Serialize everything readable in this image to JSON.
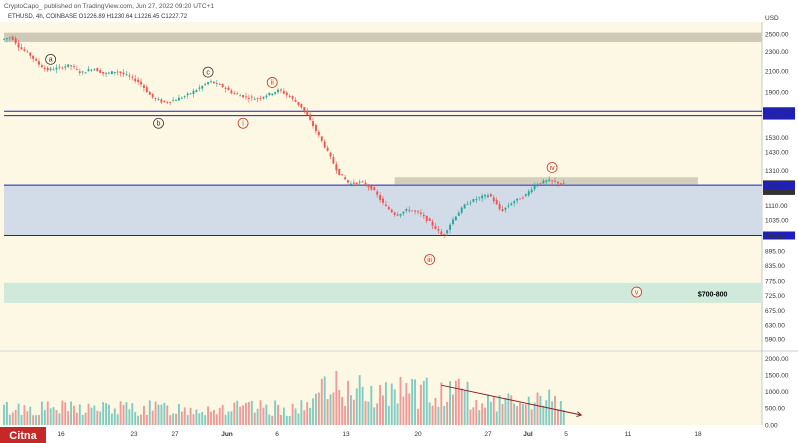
{
  "header": {
    "publisher_line": "CryptoCapo_ published on TradingView.com, Jun 27, 2022 09:20 UTC+1",
    "symbol_line": "ETHUSD, 4h, COINBASE O1226.89 H1230.64 L1226.45 C1227.72"
  },
  "watermark": "Citna",
  "colors": {
    "background": "#fdf8e3",
    "candle_up": "#26a69a",
    "candle_down": "#ef5350",
    "level_line": "#1f1fbf",
    "zone_blue": "#d2dbe8",
    "zone_gray": "#cfcab8",
    "zone_green": "#cfeadb",
    "wave_label": "#c0392b"
  },
  "chart_data": [
    {
      "type": "candlestick",
      "currency_label": "USD",
      "y_axis_ticks": [
        "2500.00",
        "2300.00",
        "2100.00",
        "1900.00",
        "1736.09",
        "1700.87",
        "1530.00",
        "1430.00",
        "1310.00",
        "1227.72",
        "03:39:45",
        "1223.21",
        "1110.00",
        "1035.00",
        "963.47",
        "955.00",
        "895.00",
        "835.00",
        "775.00",
        "725.00",
        "675.00",
        "630.00",
        "590.00"
      ],
      "x_axis_ticks": [
        "16",
        "23",
        "27",
        "Jun",
        "6",
        "13",
        "20",
        "27",
        "Jul",
        "5",
        "11",
        "18"
      ],
      "ylim": [
        560,
        2650
      ],
      "price_path": [
        [
          0,
          2440
        ],
        [
          3,
          2470
        ],
        [
          6,
          2340
        ],
        [
          9,
          2280
        ],
        [
          12,
          2180
        ],
        [
          15,
          2110
        ],
        [
          19,
          2130
        ],
        [
          23,
          2160
        ],
        [
          27,
          2080
        ],
        [
          31,
          2130
        ],
        [
          35,
          2070
        ],
        [
          39,
          2100
        ],
        [
          43,
          2050
        ],
        [
          47,
          1990
        ],
        [
          51,
          1860
        ],
        [
          55,
          1810
        ],
        [
          59,
          1830
        ],
        [
          63,
          1870
        ],
        [
          67,
          1930
        ],
        [
          71,
          2000
        ],
        [
          75,
          1960
        ],
        [
          79,
          1890
        ],
        [
          83,
          1860
        ],
        [
          87,
          1840
        ],
        [
          91,
          1880
        ],
        [
          95,
          1920
        ],
        [
          99,
          1850
        ],
        [
          103,
          1760
        ],
        [
          107,
          1600
        ],
        [
          111,
          1450
        ],
        [
          115,
          1300
        ],
        [
          119,
          1230
        ],
        [
          123,
          1240
        ],
        [
          127,
          1200
        ],
        [
          131,
          1110
        ],
        [
          135,
          1060
        ],
        [
          139,
          1090
        ],
        [
          143,
          1070
        ],
        [
          147,
          1020
        ],
        [
          151,
          960
        ],
        [
          155,
          1050
        ],
        [
          159,
          1120
        ],
        [
          163,
          1150
        ],
        [
          167,
          1170
        ],
        [
          171,
          1080
        ],
        [
          175,
          1130
        ],
        [
          179,
          1160
        ],
        [
          183,
          1230
        ],
        [
          187,
          1250
        ],
        [
          190,
          1240
        ],
        [
          192,
          1228
        ]
      ],
      "levels": [
        {
          "label": "1736.09",
          "price": 1736.09
        },
        {
          "label": "1700.87",
          "price": 1700.87
        },
        {
          "label": "1223.21",
          "price": 1223.21
        },
        {
          "label": "963.47",
          "price": 963.47
        }
      ],
      "zones": [
        {
          "kind": "resistance",
          "from": 2410,
          "to": 2520
        },
        {
          "kind": "range",
          "from": 963.47,
          "to": 1223.21
        },
        {
          "kind": "current",
          "from": 1228,
          "to": 1270
        },
        {
          "kind": "target",
          "from": 700,
          "to": 770
        }
      ],
      "annotations": {
        "wave_labels": [
          {
            "label": "a",
            "x": 16,
            "price": 2220
          },
          {
            "label": "b",
            "x": 53,
            "price": 1640
          },
          {
            "label": "c",
            "x": 70,
            "price": 2090
          },
          {
            "label": "i",
            "x": 82,
            "price": 1640
          },
          {
            "label": "ii",
            "x": 92,
            "price": 1990
          },
          {
            "label": "iii",
            "x": 146,
            "price": 860
          },
          {
            "label": "iv",
            "x": 188,
            "price": 1330
          },
          {
            "label": "v",
            "x": 217,
            "price": 737
          }
        ],
        "target_text": "$700-800"
      },
      "volume": {
        "y_ticks": [
          "2000.00",
          "1500.00",
          "1000.00",
          "500.00",
          "0.00"
        ],
        "ylim": [
          0,
          2200
        ],
        "trend_line": [
          [
            150,
            1200
          ],
          [
            198,
            300
          ]
        ]
      }
    }
  ]
}
